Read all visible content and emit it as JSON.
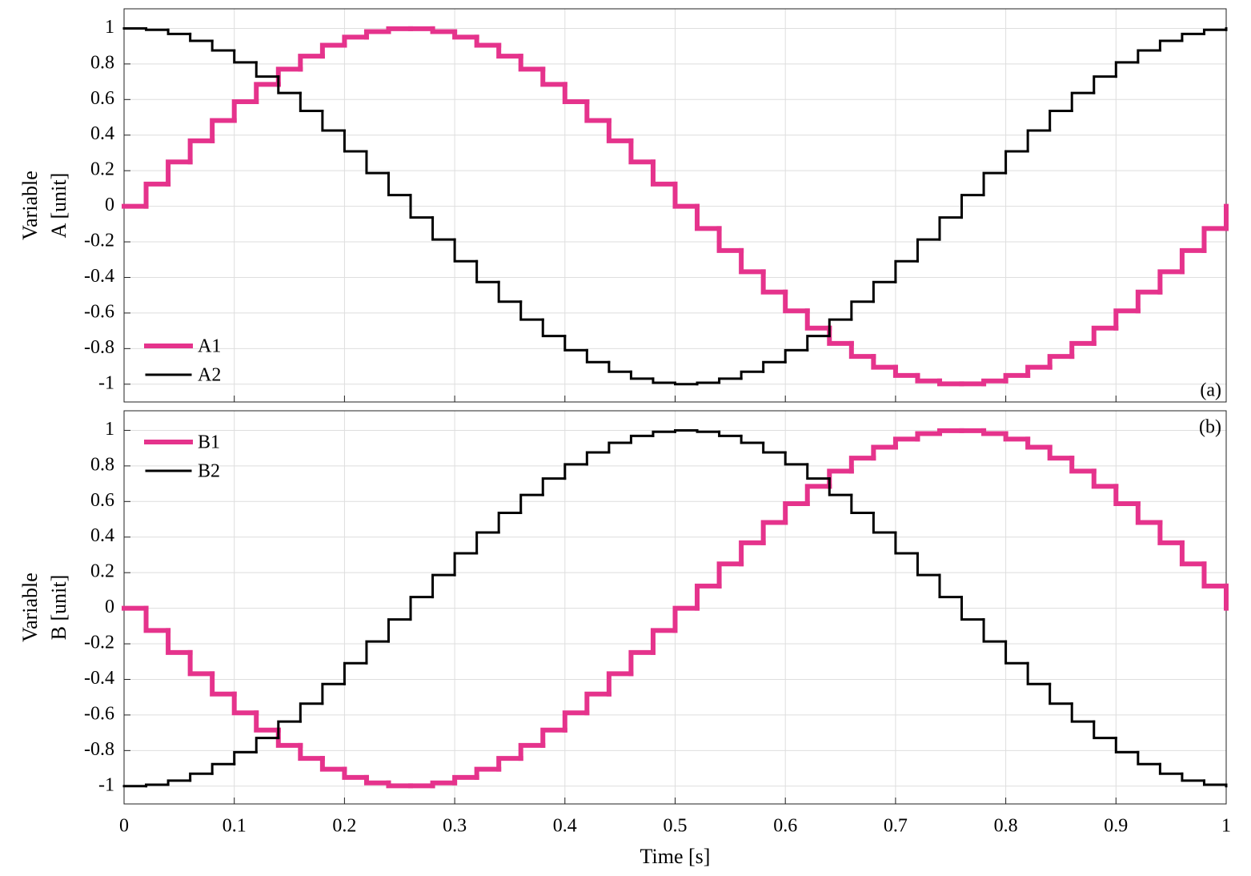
{
  "chart_data": [
    {
      "type": "line",
      "drawstyle": "steps-post",
      "grid": true,
      "legend": "lower left",
      "annotation": "(a)",
      "show_xticklabels": false,
      "ylabel": [
        "Variable",
        "A [unit]"
      ],
      "xlim": [
        0,
        1
      ],
      "xticks": [
        0,
        0.1,
        0.2,
        0.3,
        0.4,
        0.5,
        0.6,
        0.7,
        0.8,
        0.9,
        1
      ],
      "ylim": [
        -1.1,
        1.11
      ],
      "yticks": [
        -1,
        -0.8,
        -0.6,
        -0.4,
        -0.2,
        0,
        0.2,
        0.4,
        0.6,
        0.8,
        1
      ],
      "x": [
        0,
        0.02,
        0.04,
        0.06,
        0.08,
        0.1,
        0.12,
        0.14,
        0.16,
        0.18,
        0.2,
        0.22,
        0.24,
        0.26,
        0.28,
        0.3,
        0.32,
        0.34,
        0.36,
        0.38,
        0.4,
        0.42,
        0.44,
        0.46,
        0.48,
        0.5,
        0.52,
        0.54,
        0.56,
        0.58,
        0.6,
        0.62,
        0.64,
        0.66,
        0.68,
        0.7,
        0.72,
        0.74,
        0.76,
        0.78,
        0.8,
        0.82,
        0.84,
        0.86,
        0.88,
        0.9,
        0.92,
        0.94,
        0.96,
        0.98,
        1
      ],
      "series": [
        {
          "name": "A1",
          "color": "#e5338c",
          "values": [
            0,
            0.125,
            0.249,
            0.368,
            0.482,
            0.588,
            0.685,
            0.771,
            0.844,
            0.905,
            0.951,
            0.982,
            0.998,
            0.998,
            0.982,
            0.951,
            0.905,
            0.844,
            0.771,
            0.685,
            0.588,
            0.482,
            0.368,
            0.249,
            0.125,
            0,
            -0.125,
            -0.249,
            -0.368,
            -0.482,
            -0.588,
            -0.685,
            -0.771,
            -0.844,
            -0.905,
            -0.951,
            -0.982,
            -0.998,
            -0.998,
            -0.982,
            -0.951,
            -0.905,
            -0.844,
            -0.771,
            -0.685,
            -0.588,
            -0.482,
            -0.368,
            -0.249,
            -0.125,
            0
          ]
        },
        {
          "name": "A2",
          "color": "#000000",
          "values": [
            1,
            0.992,
            0.969,
            0.93,
            0.876,
            0.809,
            0.729,
            0.637,
            0.536,
            0.426,
            0.309,
            0.187,
            0.063,
            -0.063,
            -0.187,
            -0.309,
            -0.426,
            -0.536,
            -0.637,
            -0.729,
            -0.809,
            -0.876,
            -0.93,
            -0.969,
            -0.992,
            -1,
            -0.992,
            -0.969,
            -0.93,
            -0.876,
            -0.809,
            -0.729,
            -0.637,
            -0.536,
            -0.426,
            -0.309,
            -0.187,
            -0.063,
            0.063,
            0.187,
            0.309,
            0.426,
            0.536,
            0.637,
            0.729,
            0.809,
            0.876,
            0.93,
            0.969,
            0.992,
            1
          ]
        }
      ]
    },
    {
      "type": "line",
      "drawstyle": "steps-post",
      "grid": true,
      "legend": "upper left",
      "annotation": "(b)",
      "show_xticklabels": true,
      "ylabel": [
        "Variable",
        "B [unit]"
      ],
      "xlabel": "Time [s]",
      "xlim": [
        0,
        1
      ],
      "xticks": [
        0,
        0.1,
        0.2,
        0.3,
        0.4,
        0.5,
        0.6,
        0.7,
        0.8,
        0.9,
        1
      ],
      "ylim": [
        -1.1,
        1.11
      ],
      "yticks": [
        -1,
        -0.8,
        -0.6,
        -0.4,
        -0.2,
        0,
        0.2,
        0.4,
        0.6,
        0.8,
        1
      ],
      "x": [
        0,
        0.02,
        0.04,
        0.06,
        0.08,
        0.1,
        0.12,
        0.14,
        0.16,
        0.18,
        0.2,
        0.22,
        0.24,
        0.26,
        0.28,
        0.3,
        0.32,
        0.34,
        0.36,
        0.38,
        0.4,
        0.42,
        0.44,
        0.46,
        0.48,
        0.5,
        0.52,
        0.54,
        0.56,
        0.58,
        0.6,
        0.62,
        0.64,
        0.66,
        0.68,
        0.7,
        0.72,
        0.74,
        0.76,
        0.78,
        0.8,
        0.82,
        0.84,
        0.86,
        0.88,
        0.9,
        0.92,
        0.94,
        0.96,
        0.98,
        1
      ],
      "series": [
        {
          "name": "B1",
          "color": "#e5338c",
          "values": [
            0,
            -0.125,
            -0.249,
            -0.368,
            -0.482,
            -0.588,
            -0.685,
            -0.771,
            -0.844,
            -0.905,
            -0.951,
            -0.982,
            -0.998,
            -0.998,
            -0.982,
            -0.951,
            -0.905,
            -0.844,
            -0.771,
            -0.685,
            -0.588,
            -0.482,
            -0.368,
            -0.249,
            -0.125,
            0,
            0.125,
            0.249,
            0.368,
            0.482,
            0.588,
            0.685,
            0.771,
            0.844,
            0.905,
            0.951,
            0.982,
            0.998,
            0.998,
            0.982,
            0.951,
            0.905,
            0.844,
            0.771,
            0.685,
            0.588,
            0.482,
            0.368,
            0.249,
            0.125,
            0
          ]
        },
        {
          "name": "B2",
          "color": "#000000",
          "values": [
            -1,
            -0.992,
            -0.969,
            -0.93,
            -0.876,
            -0.809,
            -0.729,
            -0.637,
            -0.536,
            -0.426,
            -0.309,
            -0.187,
            -0.063,
            0.063,
            0.187,
            0.309,
            0.426,
            0.536,
            0.637,
            0.729,
            0.809,
            0.876,
            0.93,
            0.969,
            0.992,
            1,
            0.992,
            0.969,
            0.93,
            0.876,
            0.809,
            0.729,
            0.637,
            0.536,
            0.426,
            0.309,
            0.187,
            0.063,
            -0.063,
            -0.187,
            -0.309,
            -0.426,
            -0.536,
            -0.637,
            -0.729,
            -0.809,
            -0.876,
            -0.93,
            -0.969,
            -0.992,
            -1
          ]
        }
      ]
    }
  ]
}
